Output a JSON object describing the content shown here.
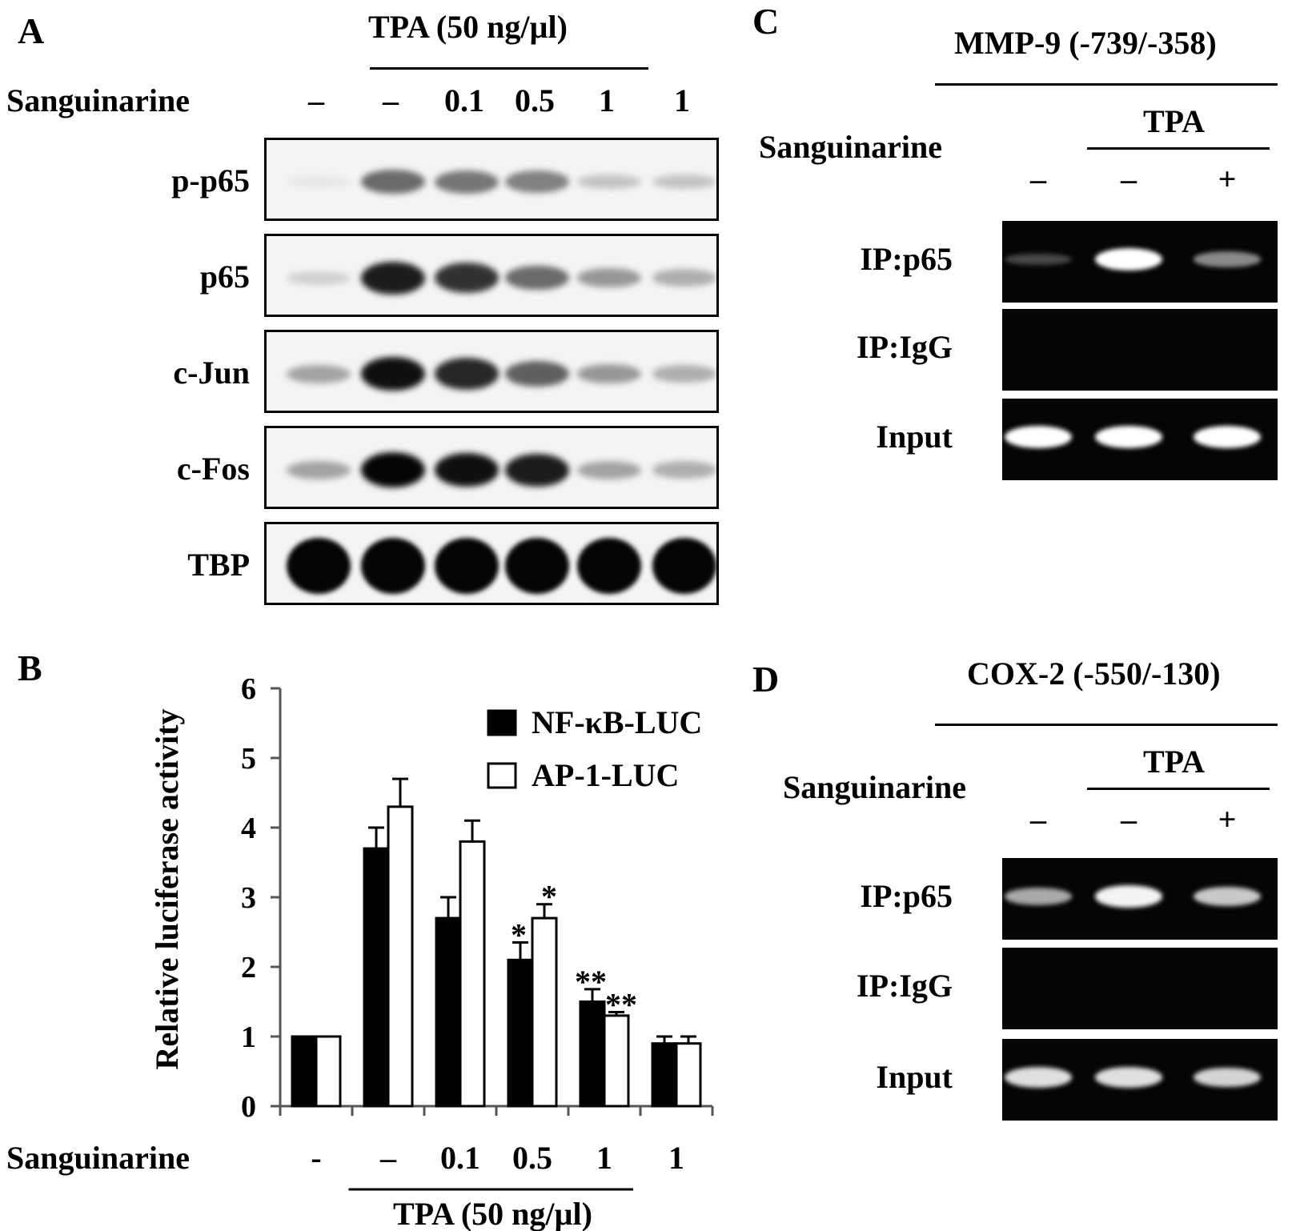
{
  "panel_a": {
    "letter": "A",
    "tpa_label": "TPA  (50 ng/µl)",
    "sanguinarine_label": "Sanguinarine",
    "doses": [
      "–",
      "–",
      "0.1",
      "0.5",
      "1",
      "1"
    ],
    "blots": [
      {
        "name": "p-p65",
        "intensity": [
          0.0,
          0.55,
          0.5,
          0.45,
          0.15,
          0.15
        ]
      },
      {
        "name": "p65",
        "intensity": [
          0.1,
          0.9,
          0.8,
          0.55,
          0.35,
          0.25
        ]
      },
      {
        "name": "c-Jun",
        "intensity": [
          0.3,
          0.95,
          0.85,
          0.6,
          0.35,
          0.25
        ]
      },
      {
        "name": "c-Fos",
        "intensity": [
          0.3,
          1.0,
          0.95,
          0.9,
          0.3,
          0.25
        ]
      },
      {
        "name": "TBP",
        "intensity": [
          1.0,
          1.0,
          1.0,
          1.0,
          1.0,
          1.0
        ]
      }
    ]
  },
  "panel_b": {
    "letter": "B",
    "sanguinarine_label": "Sanguinarine",
    "tpa_label": "TPA  (50 ng/µl)"
  },
  "chart_data": {
    "type": "bar",
    "categories": [
      "-",
      "–",
      "0.1",
      "0.5",
      "1",
      "1"
    ],
    "series": [
      {
        "name": "NF-κB-LUC",
        "values": [
          1.0,
          3.7,
          2.7,
          2.1,
          1.5,
          0.9
        ],
        "errors": [
          0,
          0.3,
          0.3,
          0.25,
          0.18,
          0.1
        ],
        "color": "#000000"
      },
      {
        "name": "AP-1-LUC",
        "values": [
          1.0,
          4.3,
          3.8,
          2.7,
          1.3,
          0.9
        ],
        "errors": [
          0,
          0.4,
          0.3,
          0.2,
          0.05,
          0.1
        ],
        "color": "#ffffff"
      }
    ],
    "significance": [
      {
        "category_index": 3,
        "series_index": 0,
        "label": "*"
      },
      {
        "category_index": 3,
        "series_index": 1,
        "label": "*"
      },
      {
        "category_index": 4,
        "series_index": 0,
        "label": "**"
      },
      {
        "category_index": 4,
        "series_index": 1,
        "label": "**"
      }
    ],
    "ylabel": "Relative  luciferase activity",
    "ylim": [
      0,
      6
    ],
    "yticks": [
      0,
      1,
      2,
      3,
      4,
      5,
      6
    ],
    "legend_position": "top-right",
    "grid": false
  },
  "panel_c": {
    "letter": "C",
    "title": "MMP-9 (-739/-358)",
    "tpa_label": "TPA",
    "sanguinarine_label": "Sanguinarine",
    "signs": [
      "–",
      "–",
      "+"
    ],
    "rows": [
      {
        "name": "IP:p65",
        "intensity": [
          0.15,
          1.0,
          0.45
        ]
      },
      {
        "name": "IP:IgG",
        "intensity": [
          0,
          0,
          0
        ]
      },
      {
        "name": "Input",
        "intensity": [
          1.0,
          1.0,
          1.0
        ]
      }
    ]
  },
  "panel_d": {
    "letter": "D",
    "title": "COX-2 (-550/-130)",
    "tpa_label": "TPA",
    "sanguinarine_label": "Sanguinarine",
    "signs": [
      "–",
      "–",
      "+"
    ],
    "rows": [
      {
        "name": "IP:p65",
        "intensity": [
          0.6,
          0.95,
          0.75
        ]
      },
      {
        "name": "IP:IgG",
        "intensity": [
          0,
          0,
          0
        ]
      },
      {
        "name": "Input",
        "intensity": [
          0.85,
          0.85,
          0.8
        ]
      }
    ]
  }
}
